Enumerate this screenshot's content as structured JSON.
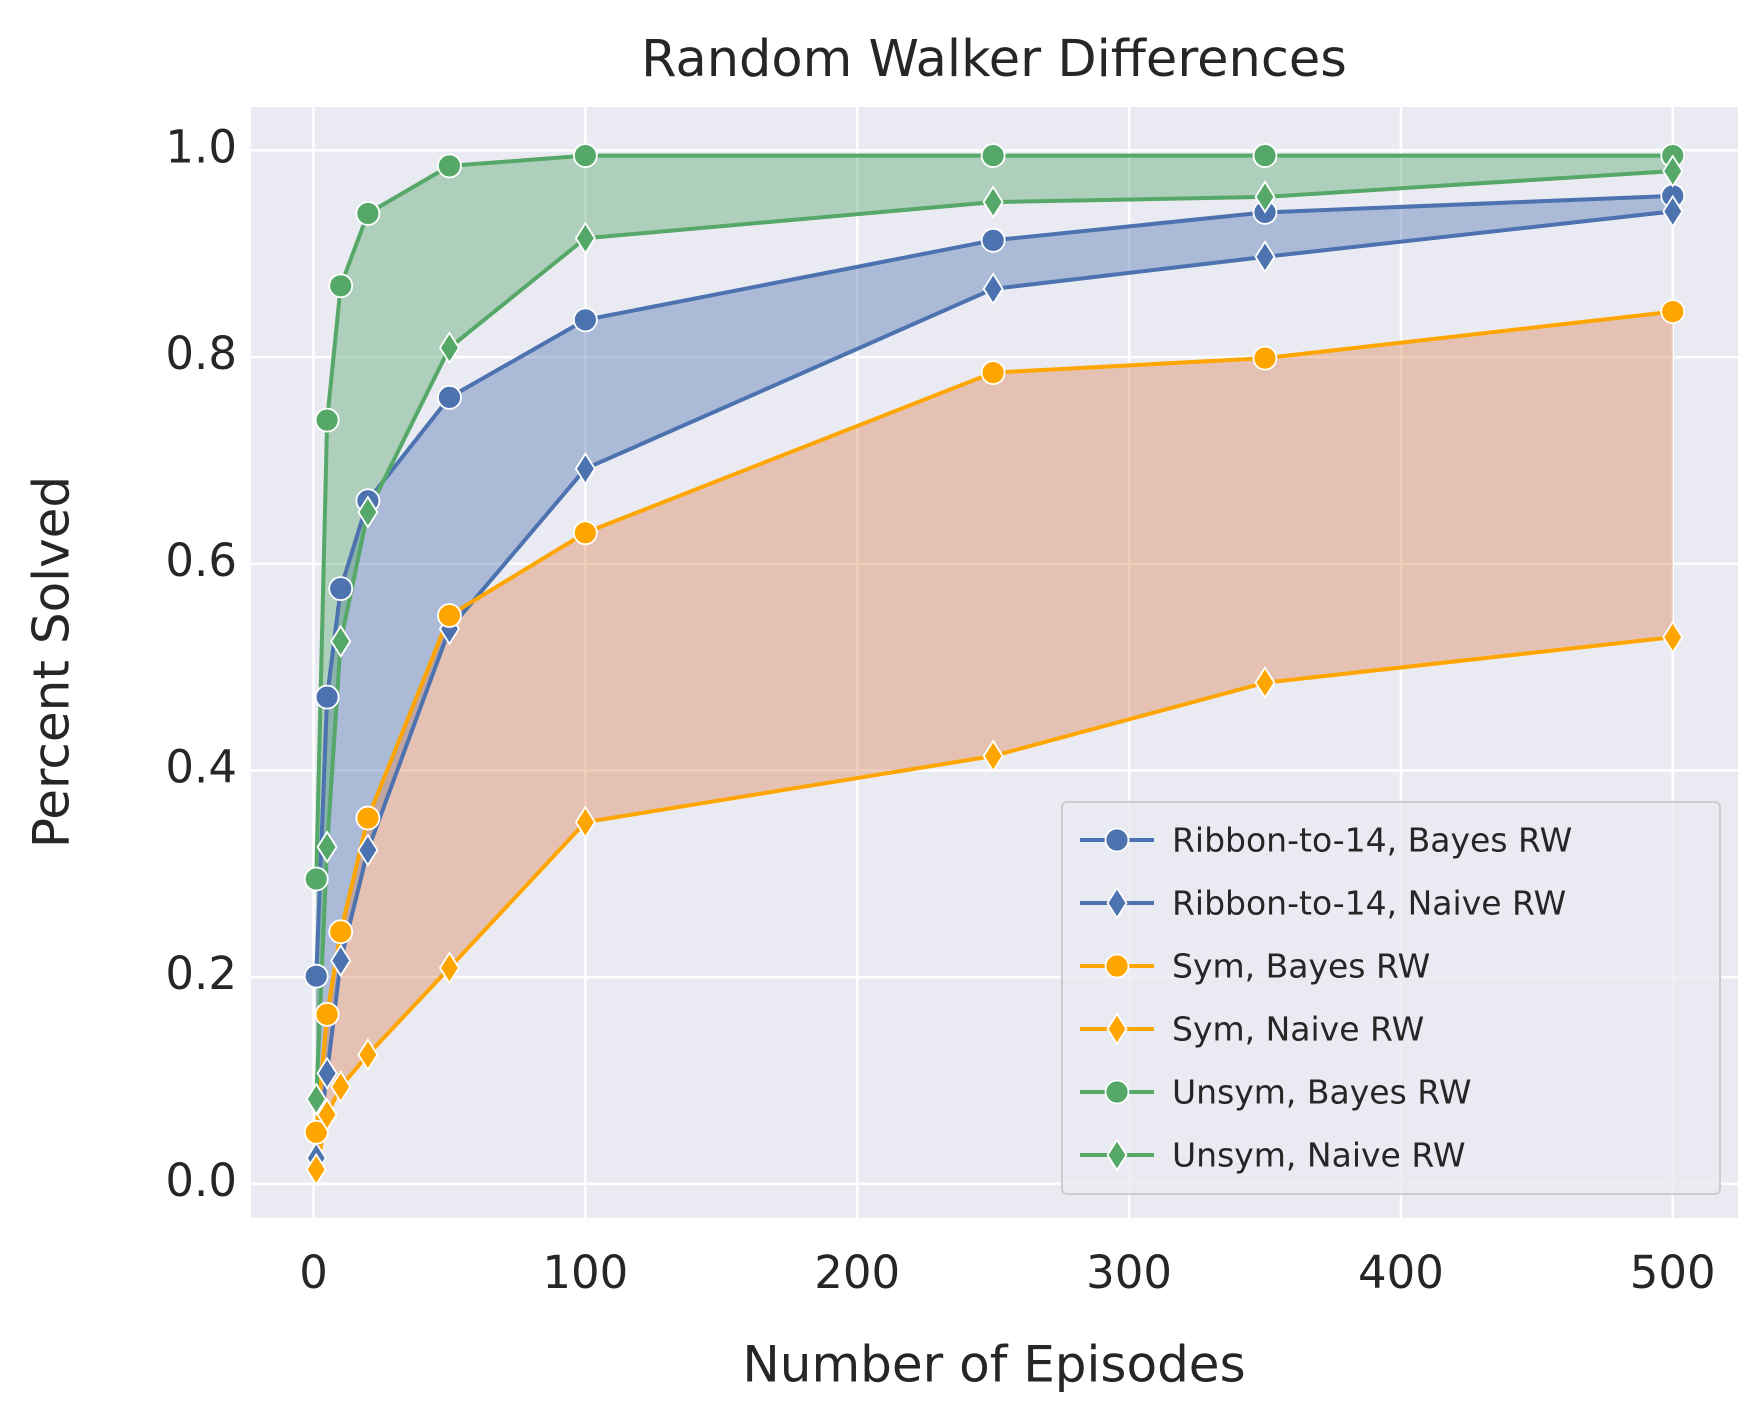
{
  "chart_data": {
    "type": "line",
    "title": "Random Walker Differences",
    "x_label": "Number of Episodes",
    "y_label": "Percent Solved",
    "x": [
      1,
      5,
      10,
      20,
      50,
      100,
      250,
      350,
      500
    ],
    "series": [
      {
        "name": "Ribbon-to-14, Bayes RW",
        "color": "#4c72b0",
        "marker": "circle",
        "values": [
          0.201,
          0.471,
          0.576,
          0.661,
          0.761,
          0.836,
          0.913,
          0.94,
          0.956
        ]
      },
      {
        "name": "Ribbon-to-14, Naive RW",
        "color": "#4c72b0",
        "marker": "diamond",
        "values": [
          0.025,
          0.107,
          0.216,
          0.323,
          0.537,
          0.692,
          0.866,
          0.897,
          0.941
        ]
      },
      {
        "name": "Sym, Bayes RW",
        "color": "#ffa500",
        "marker": "circle",
        "values": [
          0.05,
          0.164,
          0.244,
          0.354,
          0.55,
          0.63,
          0.785,
          0.799,
          0.844
        ]
      },
      {
        "name": "Sym, Naive RW",
        "color": "#ffa500",
        "marker": "diamond",
        "values": [
          0.014,
          0.067,
          0.094,
          0.125,
          0.209,
          0.35,
          0.414,
          0.485,
          0.529
        ]
      },
      {
        "name": "Unsym, Bayes RW",
        "color": "#55a868",
        "marker": "circle",
        "values": [
          0.295,
          0.739,
          0.869,
          0.939,
          0.985,
          0.995,
          0.995,
          0.995,
          0.995
        ]
      },
      {
        "name": "Unsym, Naive RW",
        "color": "#55a868",
        "marker": "diamond",
        "values": [
          0.082,
          0.326,
          0.525,
          0.65,
          0.809,
          0.915,
          0.95,
          0.955,
          0.98
        ]
      }
    ],
    "fills": [
      {
        "between": [
          0,
          1
        ],
        "color": "#4c72b0"
      },
      {
        "between": [
          2,
          3
        ],
        "color": "#dd8452"
      },
      {
        "between": [
          4,
          5
        ],
        "color": "#55a868"
      }
    ],
    "xlim": [
      -23,
      524
    ],
    "ylim": [
      -0.033,
      1.042
    ],
    "xticks": [
      0,
      100,
      200,
      300,
      400,
      500
    ],
    "yticks": [
      {
        "value": 0,
        "label": "0.0"
      },
      {
        "value": 0.2,
        "label": "0.2"
      },
      {
        "value": 0.4,
        "label": "0.4"
      },
      {
        "value": 0.6,
        "label": "0.6"
      },
      {
        "value": 0.8,
        "label": "0.8"
      },
      {
        "value": 1,
        "label": "1.0"
      }
    ],
    "grid": true,
    "legend": "lower right"
  }
}
